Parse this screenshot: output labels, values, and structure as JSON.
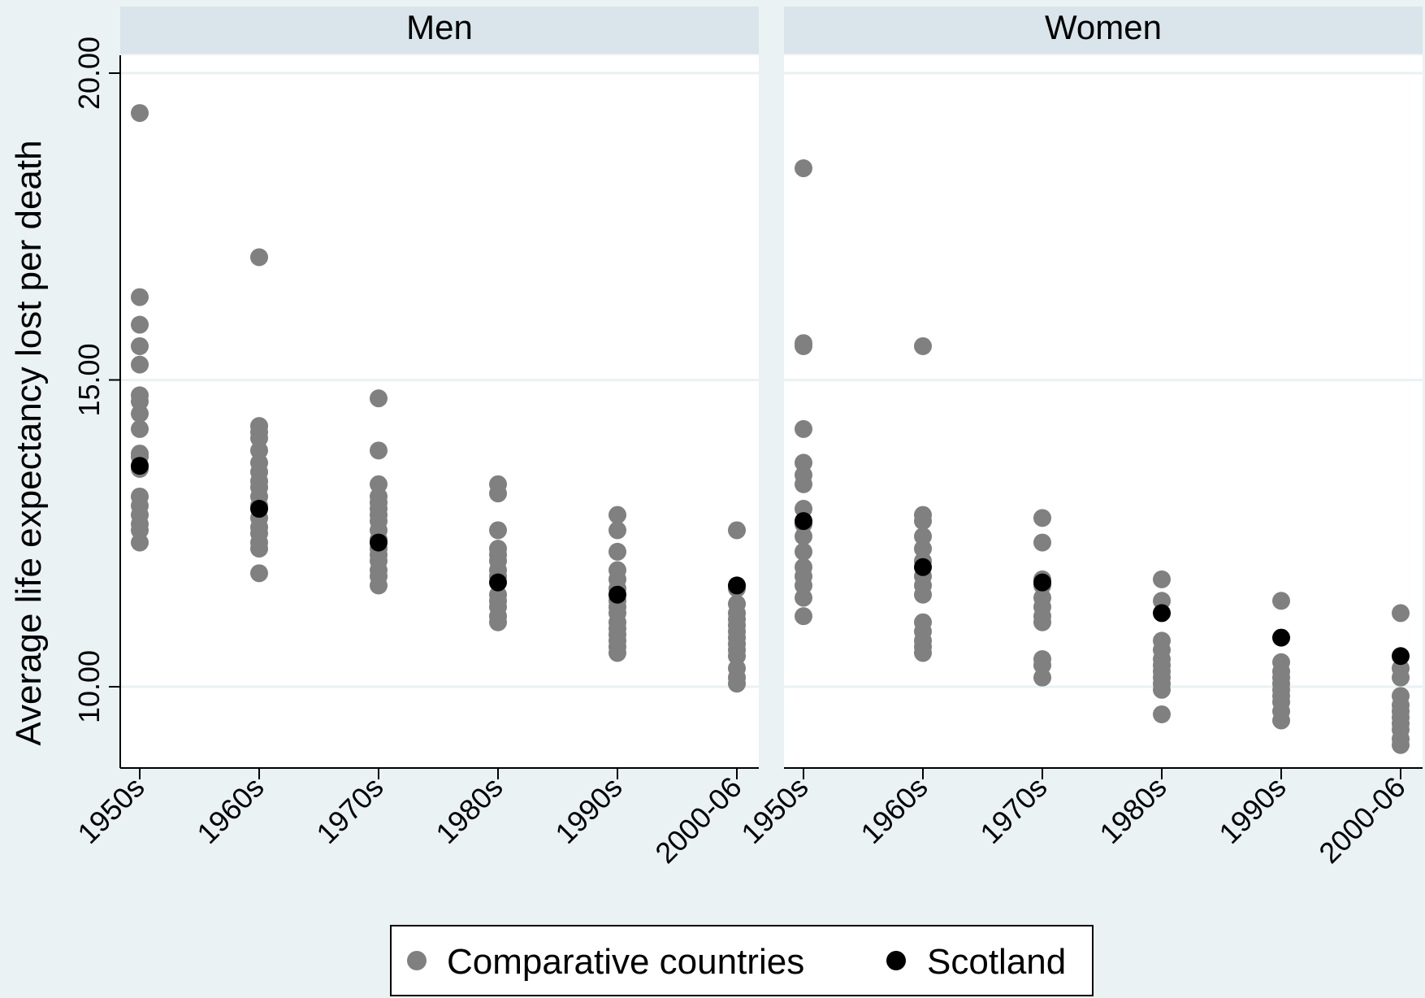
{
  "chart_data": {
    "type": "scatter",
    "ylabel": "Average life expectancy lost per death",
    "yticks": [
      10.0,
      15.0,
      20.0
    ],
    "ytick_labels": [
      "10.00",
      "15.00",
      "20.00"
    ],
    "ylim": [
      8.65,
      20.3
    ],
    "categories": [
      "1950s",
      "1960s",
      "1970s",
      "1980s",
      "1990s",
      "2000-06"
    ],
    "legend": {
      "position": "bottom",
      "entries": [
        {
          "label": "Comparative countries",
          "color": "#808080"
        },
        {
          "label": "Scotland",
          "color": "#000000"
        }
      ]
    },
    "colors": {
      "comparative": "#808080",
      "scotland": "#000000",
      "panel_strip": "#d9e5ea",
      "background": "#eaf2f3"
    },
    "panels": [
      {
        "title": "Men",
        "series": [
          {
            "name": "Comparative countries",
            "values": [
              [
                19.35,
                16.35,
                15.9,
                15.55,
                15.25,
                14.75,
                14.65,
                14.45,
                14.2,
                13.8,
                13.75,
                13.55,
                13.1,
                12.95,
                12.8,
                12.65,
                12.55,
                12.35
              ],
              [
                17.0,
                14.25,
                14.15,
                14.05,
                13.85,
                13.65,
                13.5,
                13.35,
                13.25,
                13.1,
                12.95,
                12.75,
                12.6,
                12.5,
                12.35,
                12.25,
                11.85
              ],
              [
                14.7,
                13.85,
                13.3,
                13.1,
                13.0,
                12.9,
                12.8,
                12.7,
                12.55,
                12.4,
                12.25,
                12.15,
                12.05,
                11.9,
                11.8,
                11.65
              ],
              [
                13.3,
                13.15,
                12.55,
                12.25,
                12.15,
                12.05,
                11.9,
                11.8,
                11.5,
                11.4,
                11.3,
                11.15,
                11.05
              ],
              [
                12.8,
                12.55,
                12.2,
                11.9,
                11.75,
                11.6,
                11.4,
                11.3,
                11.2,
                11.05,
                10.95,
                10.85,
                10.75,
                10.65,
                10.55
              ],
              [
                12.55,
                11.6,
                11.35,
                11.2,
                11.1,
                11.0,
                10.9,
                10.8,
                10.7,
                10.6,
                10.5,
                10.3,
                10.15,
                10.05
              ]
            ]
          },
          {
            "name": "Scotland",
            "values": [
              13.6,
              12.9,
              12.35,
              11.7,
              11.5,
              11.65
            ]
          }
        ]
      },
      {
        "title": "Women",
        "series": [
          {
            "name": "Comparative countries",
            "values": [
              [
                18.45,
                15.6,
                15.55,
                14.2,
                13.65,
                13.45,
                13.3,
                12.9,
                12.65,
                12.45,
                12.2,
                11.95,
                11.8,
                11.65,
                11.45,
                11.15
              ],
              [
                15.55,
                12.8,
                12.7,
                12.45,
                12.25,
                12.05,
                11.8,
                11.65,
                11.5,
                11.05,
                10.9,
                10.75,
                10.65,
                10.55
              ],
              [
                12.75,
                12.35,
                11.75,
                11.65,
                11.45,
                11.3,
                11.15,
                11.05,
                10.45,
                10.35,
                10.15
              ],
              [
                11.75,
                11.4,
                10.75,
                10.6,
                10.45,
                10.35,
                10.25,
                10.15,
                10.05,
                9.95,
                9.55
              ],
              [
                11.4,
                10.4,
                10.25,
                10.15,
                10.05,
                9.95,
                9.85,
                9.75,
                9.6,
                9.45
              ],
              [
                11.2,
                10.3,
                10.15,
                9.85,
                9.7,
                9.6,
                9.5,
                9.4,
                9.3,
                9.15,
                9.05
              ]
            ]
          },
          {
            "name": "Scotland",
            "values": [
              12.7,
              11.95,
              11.7,
              11.2,
              10.8,
              10.5
            ]
          }
        ]
      }
    ]
  }
}
